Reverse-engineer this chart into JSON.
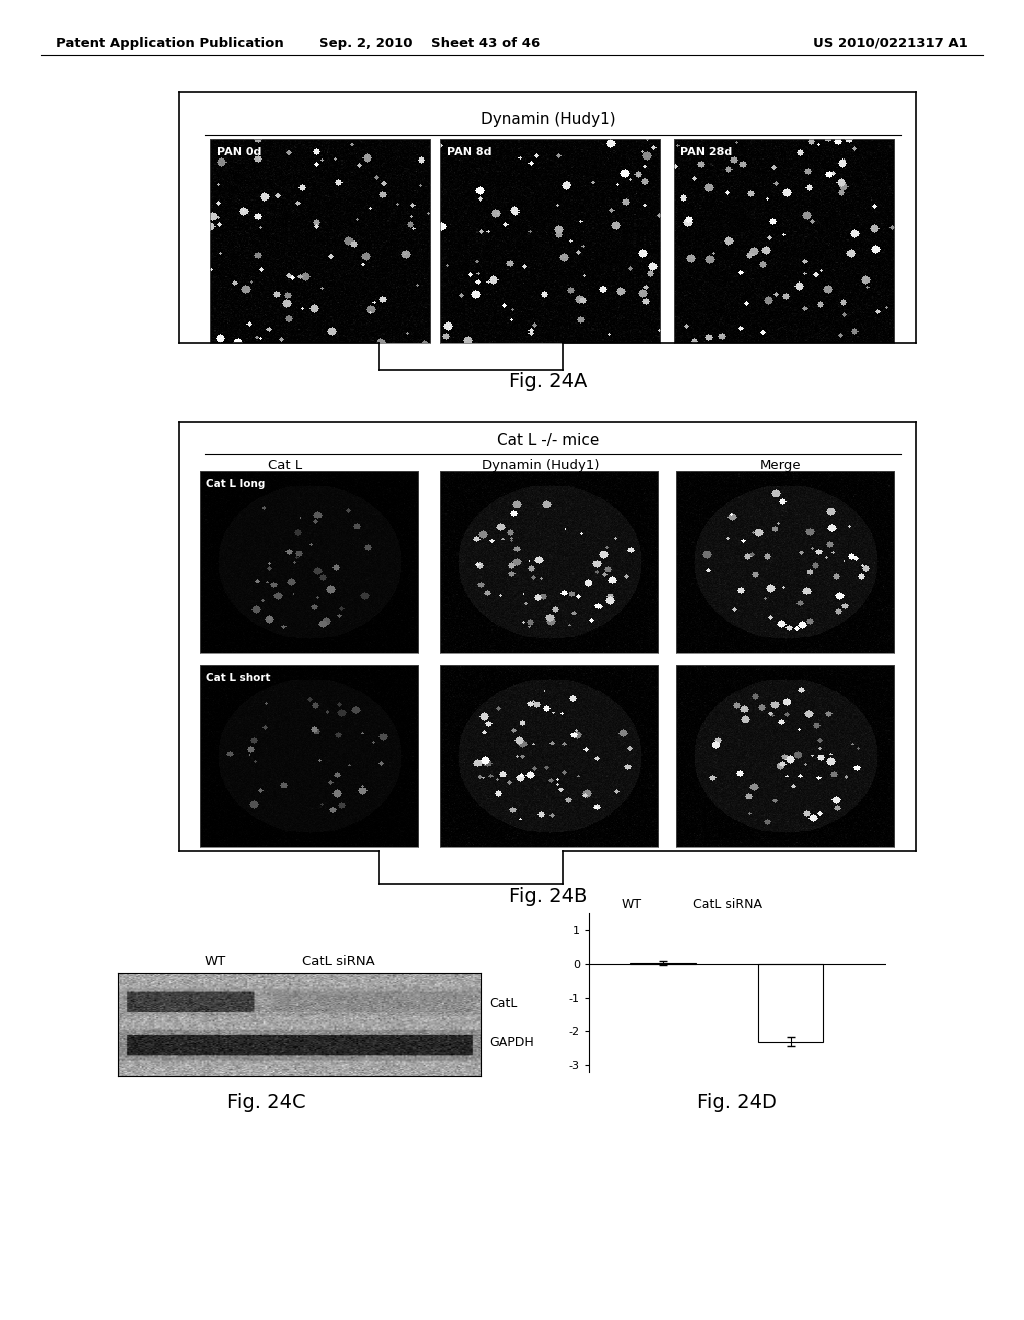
{
  "page_header_left": "Patent Application Publication",
  "page_header_center": "Sep. 2, 2010   Sheet 43 of 46",
  "page_header_right": "US 2010/0221317 A1",
  "fig24a_title": "Dynamin (Hudy1)",
  "fig24a_panels": [
    "PAN 0d",
    "PAN 8d",
    "PAN 28d"
  ],
  "fig24a_label": "Fig. 24A",
  "fig24b_title": "Cat L -/- mice",
  "fig24b_col_labels": [
    "Cat L",
    "Dynamin (Hudy1)",
    "Merge"
  ],
  "fig24b_row_labels": [
    "Cat L long",
    "Cat L short"
  ],
  "fig24b_label": "Fig. 24B",
  "fig24c_label": "Fig. 24C",
  "fig24c_col_labels": [
    "WT",
    "CatL siRNA"
  ],
  "fig24c_row_labels": [
    "CatL",
    "GAPDH"
  ],
  "fig24d_label": "Fig. 24D",
  "fig24d_col_labels": [
    "WT",
    "CatL siRNA"
  ],
  "fig24d_yticks": [
    1,
    0,
    -1,
    -2,
    -3
  ],
  "background_color": "#ffffff",
  "text_color": "#000000",
  "header_fontsize": 9.5,
  "fig_label_fontsize": 14
}
